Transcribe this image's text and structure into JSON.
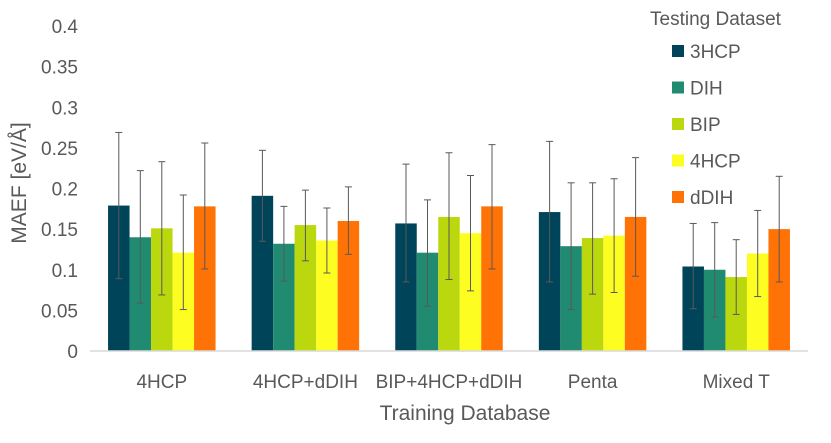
{
  "chart_data": {
    "type": "bar",
    "title": "",
    "xlabel": "Training Database",
    "ylabel": "MAEF [eV/Å]",
    "ylim": [
      0,
      0.4
    ],
    "yticks": [
      "0",
      "0.05",
      "0.1",
      "0.15",
      "0.2",
      "0.25",
      "0.3",
      "0.35",
      "0.4"
    ],
    "grid": false,
    "legend_title": "Testing Dataset",
    "legend_position": "top-right",
    "categories": [
      "4HCP",
      "4HCP+dDIH",
      "BIP+4HCP+dDIH",
      "Penta",
      "Mixed T"
    ],
    "series": [
      {
        "name": "3HCP",
        "color": "#00445a",
        "values": [
          0.179,
          0.191,
          0.157,
          0.171,
          0.104
        ],
        "err_low": [
          0.089,
          0.135,
          0.085,
          0.085,
          0.052
        ],
        "err_high": [
          0.269,
          0.247,
          0.23,
          0.258,
          0.157
        ]
      },
      {
        "name": "DIH",
        "color": "#218b72",
        "values": [
          0.14,
          0.132,
          0.121,
          0.129,
          0.1
        ],
        "err_low": [
          0.059,
          0.086,
          0.055,
          0.051,
          0.042
        ],
        "err_high": [
          0.222,
          0.178,
          0.186,
          0.207,
          0.158
        ]
      },
      {
        "name": "BIP",
        "color": "#bbd80f",
        "values": [
          0.151,
          0.155,
          0.165,
          0.139,
          0.091
        ],
        "err_low": [
          0.069,
          0.111,
          0.088,
          0.07,
          0.045
        ],
        "err_high": [
          0.233,
          0.198,
          0.244,
          0.207,
          0.137
        ]
      },
      {
        "name": "4HCP",
        "color": "#fdfd21",
        "values": [
          0.121,
          0.136,
          0.145,
          0.142,
          0.12
        ],
        "err_low": [
          0.051,
          0.096,
          0.074,
          0.072,
          0.067
        ],
        "err_high": [
          0.192,
          0.176,
          0.216,
          0.212,
          0.173
        ]
      },
      {
        "name": "dDIH",
        "color": "#ff7205",
        "values": [
          0.178,
          0.16,
          0.178,
          0.165,
          0.15
        ],
        "err_low": [
          0.101,
          0.119,
          0.101,
          0.092,
          0.085
        ],
        "err_high": [
          0.256,
          0.202,
          0.254,
          0.238,
          0.215
        ]
      }
    ]
  }
}
